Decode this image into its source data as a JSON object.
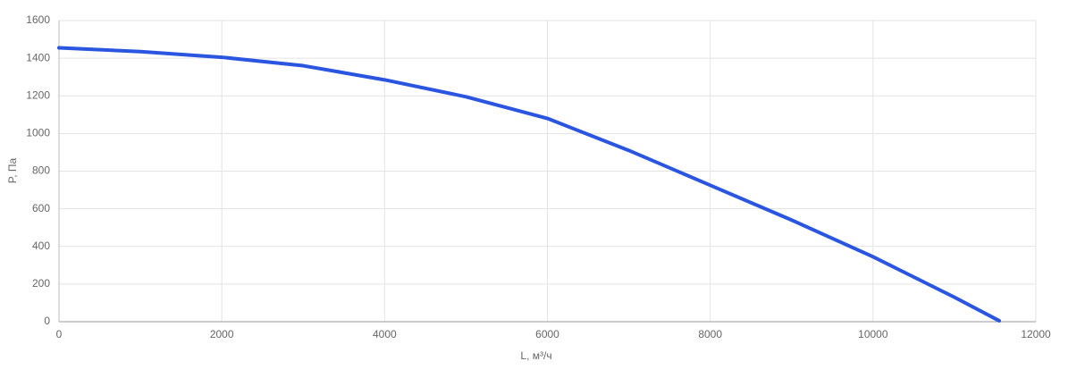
{
  "chart_data": {
    "type": "line",
    "x_label": "L, м³/ч",
    "y_label": "P, Па",
    "series": [
      {
        "name": "P",
        "color": "#2a55e0",
        "x": [
          0,
          1000,
          2000,
          3000,
          4000,
          5000,
          6000,
          7000,
          8000,
          9000,
          10000,
          11000,
          11550
        ],
        "values": [
          1455,
          1435,
          1405,
          1360,
          1285,
          1195,
          1080,
          910,
          725,
          540,
          345,
          130,
          5
        ]
      }
    ],
    "xlim": [
      0,
      12000
    ],
    "xticks": [
      0,
      2000,
      4000,
      6000,
      8000,
      10000,
      12000
    ],
    "ylim": [
      0,
      1600
    ],
    "yticks": [
      0,
      200,
      400,
      600,
      800,
      1000,
      1200,
      1400,
      1600
    ],
    "grid": true
  }
}
